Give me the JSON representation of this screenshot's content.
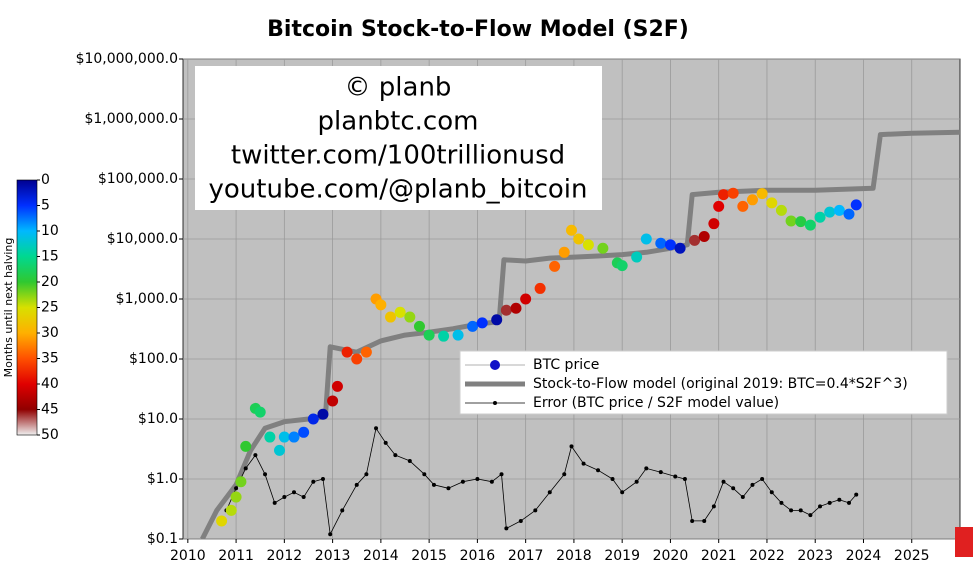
{
  "chart_data": {
    "type": "s2f",
    "title": "Bitcoin Stock-to-Flow Model (S2F)",
    "annotations": [
      "© planb",
      "planbtc.com",
      "twitter.com/100trillionusd",
      "youtube.com/@planb_bitcoin"
    ],
    "ylog": true,
    "grid": true,
    "xlim": [
      2009.9,
      2026
    ],
    "xticks": [
      2010,
      2011,
      2012,
      2013,
      2014,
      2015,
      2016,
      2017,
      2018,
      2019,
      2020,
      2021,
      2022,
      2023,
      2024,
      2025
    ],
    "ylim": [
      0.1,
      10000000
    ],
    "yticks": [
      {
        "value": 0.1,
        "label": "$0.1"
      },
      {
        "value": 1,
        "label": "$1.0"
      },
      {
        "value": 10,
        "label": "$10.0"
      },
      {
        "value": 100,
        "label": "$100.0"
      },
      {
        "value": 1000,
        "label": "$1,000.0"
      },
      {
        "value": 10000,
        "label": "$10,000.0"
      },
      {
        "value": 100000,
        "label": "$100,000.0"
      },
      {
        "value": 1000000,
        "label": "$1,000,000.0"
      },
      {
        "value": 10000000,
        "label": "$10,000,000.0"
      }
    ],
    "colorbar": {
      "label": "Months until next halving",
      "lim": [
        0,
        50
      ],
      "ticks": [
        0,
        5,
        10,
        15,
        20,
        25,
        30,
        35,
        40,
        45,
        50
      ],
      "colors": [
        "#000090",
        "#0030ff",
        "#00b8ff",
        "#00d890",
        "#30c830",
        "#d8e000",
        "#ffb000",
        "#ff5000",
        "#e00000",
        "#900000",
        "#f0f0f0"
      ]
    },
    "series": [
      {
        "name": "BTC price",
        "style": "colored-points",
        "color": "#1010c8",
        "x": [
          2010.7,
          2010.9,
          2011.0,
          2011.1,
          2011.2,
          2011.4,
          2011.5,
          2011.7,
          2011.9,
          2012.0,
          2012.2,
          2012.4,
          2012.6,
          2012.8,
          2013.0,
          2013.1,
          2013.3,
          2013.5,
          2013.7,
          2013.9,
          2014.0,
          2014.2,
          2014.4,
          2014.6,
          2014.8,
          2015.0,
          2015.3,
          2015.6,
          2015.9,
          2016.1,
          2016.4,
          2016.6,
          2016.8,
          2017.0,
          2017.3,
          2017.6,
          2017.8,
          2017.95,
          2018.1,
          2018.3,
          2018.6,
          2018.9,
          2019.0,
          2019.3,
          2019.5,
          2019.8,
          2020.0,
          2020.2,
          2020.5,
          2020.7,
          2020.9,
          2021.0,
          2021.1,
          2021.3,
          2021.5,
          2021.7,
          2021.9,
          2022.1,
          2022.3,
          2022.5,
          2022.7,
          2022.9,
          2023.1,
          2023.3,
          2023.5,
          2023.7,
          2023.85
        ],
        "values": [
          0.2,
          0.3,
          0.5,
          0.9,
          3.5,
          15,
          13,
          5,
          3,
          5,
          5,
          6,
          10,
          12,
          20,
          35,
          130,
          100,
          130,
          1000,
          800,
          500,
          600,
          500,
          350,
          250,
          240,
          250,
          350,
          400,
          450,
          650,
          700,
          1000,
          1500,
          3500,
          6000,
          14000,
          10000,
          8000,
          7000,
          4000,
          3600,
          5000,
          10000,
          8500,
          8000,
          7000,
          9500,
          11000,
          18000,
          35000,
          55000,
          58000,
          35000,
          45000,
          57000,
          40000,
          30000,
          20000,
          19500,
          17000,
          23000,
          28000,
          30000,
          26000,
          37000
        ],
        "color_values": [
          26,
          24,
          23,
          22,
          20,
          18,
          17,
          14,
          12,
          11,
          8,
          6,
          4,
          1,
          42,
          41,
          38,
          36,
          34,
          31,
          30,
          28,
          25,
          23,
          20,
          18,
          14,
          11,
          7,
          5,
          1,
          46,
          43,
          41,
          37,
          34,
          31,
          29,
          28,
          25,
          22,
          18,
          17,
          13,
          11,
          7,
          5,
          2,
          46,
          43,
          41,
          40,
          38,
          36,
          34,
          31,
          29,
          26,
          24,
          22,
          19,
          17,
          14,
          12,
          10,
          7,
          5
        ]
      },
      {
        "name": "Stock-to-Flow model (original 2019:  BTC=0.4*S2F^3)",
        "style": "thick-line",
        "color": "#808080",
        "x": [
          2010.3,
          2010.6,
          2011.0,
          2011.3,
          2011.6,
          2012.0,
          2012.5,
          2012.85,
          2012.95,
          2013.5,
          2014.0,
          2014.5,
          2015.0,
          2015.5,
          2016.0,
          2016.45,
          2016.55,
          2017.0,
          2017.5,
          2018.0,
          2018.5,
          2019.0,
          2019.5,
          2020.0,
          2020.35,
          2020.45,
          2021.0,
          2022.0,
          2023.0,
          2024.2,
          2024.35,
          2025.0,
          2026.0
        ],
        "values": [
          0.1,
          0.3,
          0.8,
          3,
          7,
          9,
          10,
          11,
          160,
          130,
          200,
          250,
          280,
          320,
          380,
          420,
          4500,
          4300,
          4800,
          5000,
          5200,
          5500,
          6000,
          7000,
          8000,
          55000,
          60000,
          65000,
          65000,
          70000,
          550000,
          580000,
          600000
        ]
      },
      {
        "name": "Error (BTC price / S2F model value)",
        "style": "line-points",
        "color": "#000000",
        "x": [
          2010.8,
          2011.0,
          2011.2,
          2011.4,
          2011.6,
          2011.8,
          2012.0,
          2012.2,
          2012.4,
          2012.6,
          2012.8,
          2012.95,
          2013.2,
          2013.5,
          2013.7,
          2013.9,
          2014.1,
          2014.3,
          2014.6,
          2014.9,
          2015.1,
          2015.4,
          2015.7,
          2016.0,
          2016.3,
          2016.5,
          2016.6,
          2016.9,
          2017.2,
          2017.5,
          2017.8,
          2017.95,
          2018.2,
          2018.5,
          2018.8,
          2019.0,
          2019.3,
          2019.5,
          2019.8,
          2020.1,
          2020.3,
          2020.45,
          2020.7,
          2020.9,
          2021.1,
          2021.3,
          2021.5,
          2021.7,
          2021.9,
          2022.1,
          2022.3,
          2022.5,
          2022.7,
          2022.9,
          2023.1,
          2023.3,
          2023.5,
          2023.7,
          2023.85
        ],
        "values": [
          0.3,
          0.7,
          1.5,
          2.5,
          1.2,
          0.4,
          0.5,
          0.6,
          0.5,
          0.9,
          1.0,
          0.12,
          0.3,
          0.8,
          1.2,
          7,
          4,
          2.5,
          2,
          1.2,
          0.8,
          0.7,
          0.9,
          1.0,
          0.9,
          1.2,
          0.15,
          0.2,
          0.3,
          0.6,
          1.2,
          3.5,
          1.8,
          1.4,
          1.0,
          0.6,
          0.9,
          1.5,
          1.3,
          1.1,
          1.0,
          0.2,
          0.2,
          0.35,
          0.9,
          0.7,
          0.5,
          0.8,
          1.0,
          0.6,
          0.4,
          0.3,
          0.3,
          0.25,
          0.35,
          0.4,
          0.45,
          0.4,
          0.55
        ]
      }
    ]
  }
}
